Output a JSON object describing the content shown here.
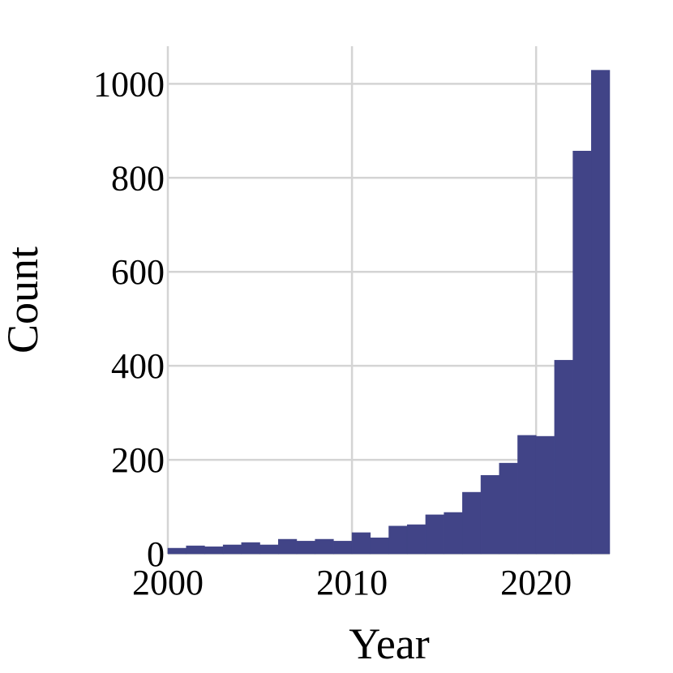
{
  "chart_data": {
    "type": "histogram",
    "x_label": "Year",
    "y_label": "Count",
    "bins": [
      2000,
      2001,
      2002,
      2003,
      2004,
      2005,
      2006,
      2007,
      2008,
      2009,
      2010,
      2011,
      2012,
      2013,
      2014,
      2015,
      2016,
      2017,
      2018,
      2019,
      2020,
      2021,
      2022,
      2023,
      2024
    ],
    "counts": [
      12,
      17,
      15,
      19,
      24,
      19,
      31,
      27,
      31,
      27,
      45,
      34,
      59,
      62,
      83,
      88,
      131,
      167,
      193,
      252,
      250,
      412,
      857,
      1029
    ],
    "color": "#414487",
    "xlim": [
      2000,
      2024
    ],
    "ylim": [
      0,
      1080
    ],
    "xticks": [
      2000,
      2010,
      2020
    ],
    "yticks": [
      0,
      200,
      400,
      600,
      800,
      1000
    ],
    "grid": true
  }
}
